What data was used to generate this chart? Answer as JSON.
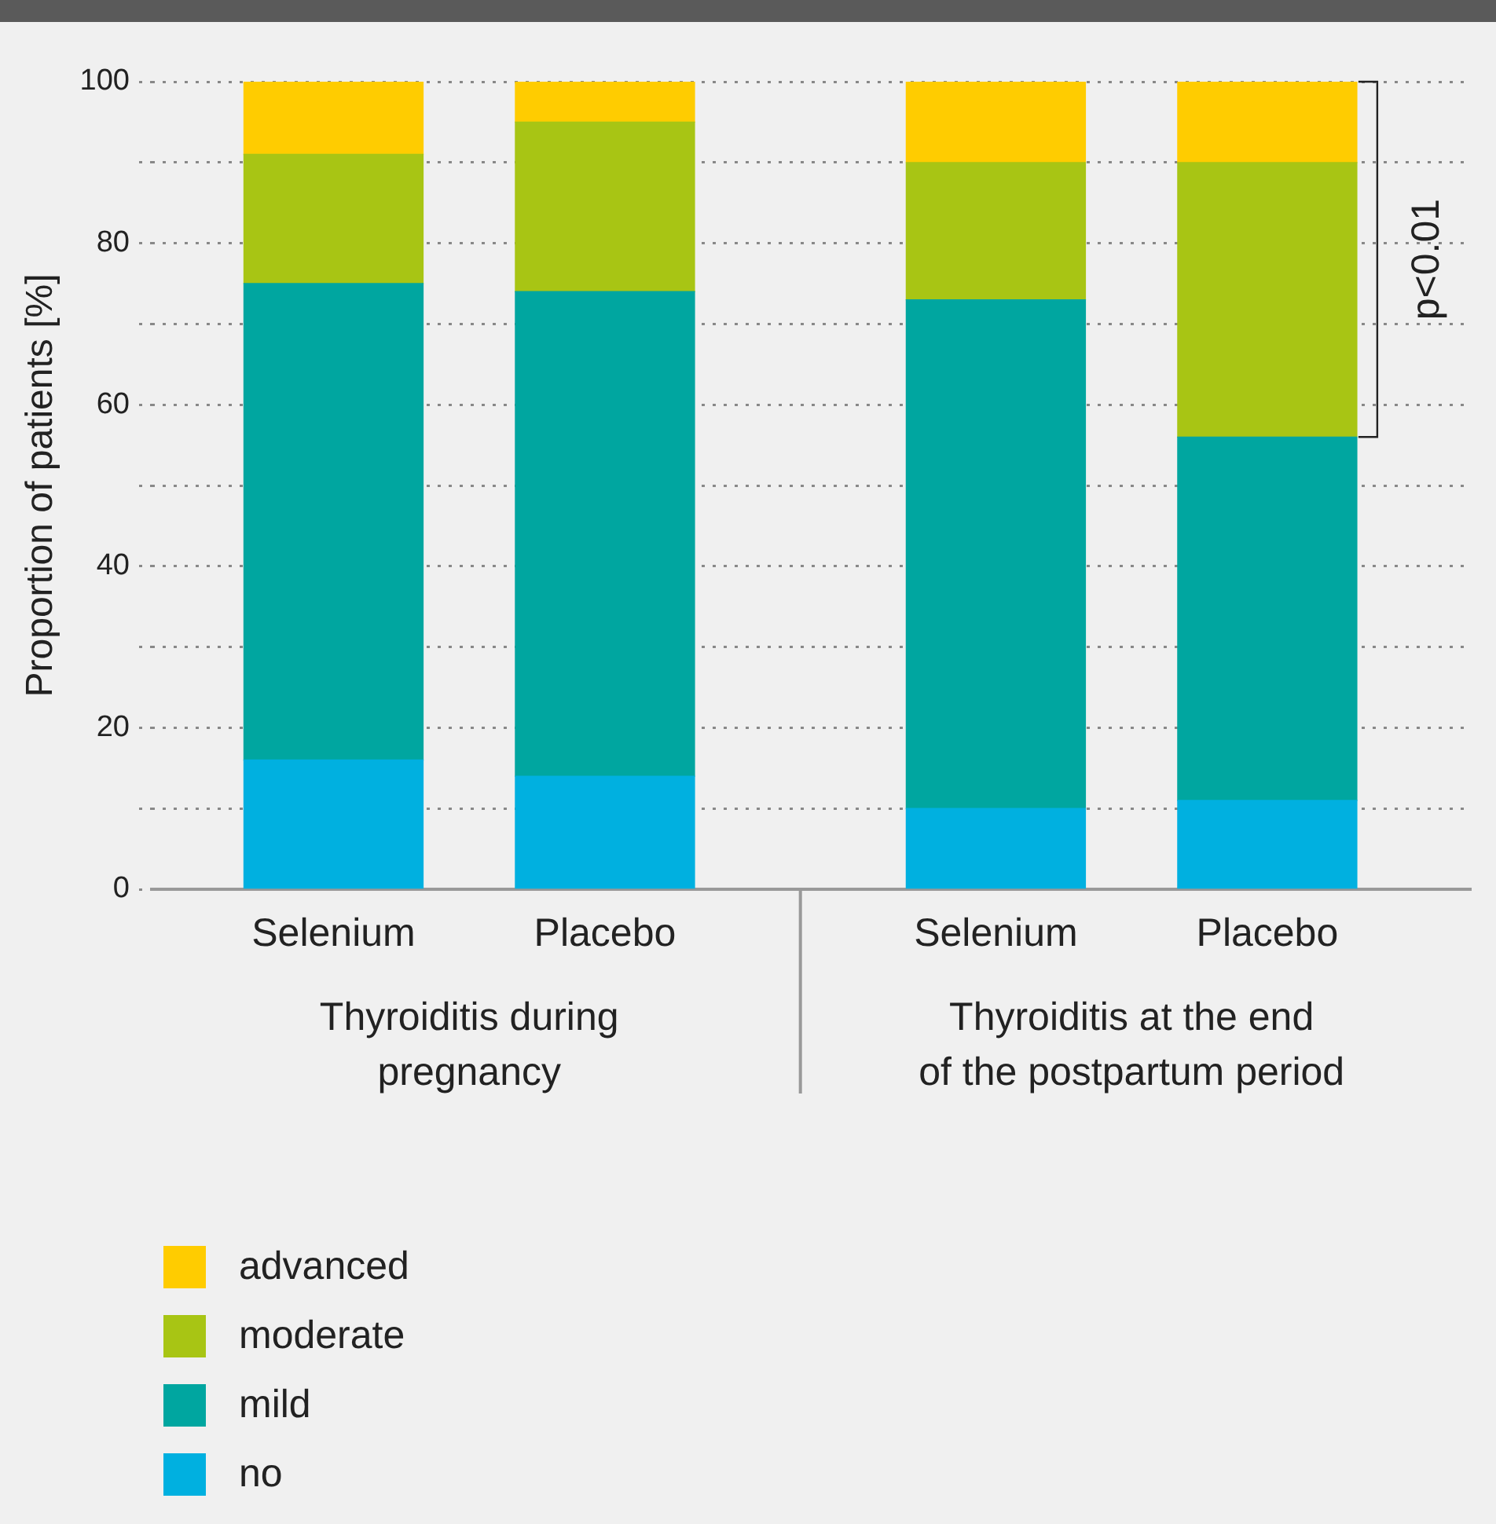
{
  "chart_data": {
    "type": "bar",
    "stacked": true,
    "ylabel": "Proportion of patients [%]",
    "categories": [
      "Selenium",
      "Placebo",
      "Selenium",
      "Placebo"
    ],
    "series": [
      {
        "name": "no",
        "color": "#00b0e0",
        "values": [
          16,
          14,
          10,
          11
        ]
      },
      {
        "name": "mild",
        "color": "#00a6a0",
        "values": [
          59,
          60,
          63,
          45
        ]
      },
      {
        "name": "moderate",
        "color": "#a8c514",
        "values": [
          16,
          21,
          17,
          34
        ]
      },
      {
        "name": "advanced",
        "color": "#ffcc00",
        "values": [
          9,
          5,
          10,
          10
        ]
      }
    ],
    "ylim": [
      0,
      100
    ],
    "yticks": [
      0,
      {
        "value": 10,
        "label": null
      },
      20,
      {
        "value": 30,
        "label": null
      },
      40,
      {
        "value": 50,
        "label": null
      },
      60,
      {
        "value": 70,
        "label": null
      },
      80,
      {
        "value": 90,
        "label": null
      },
      100
    ],
    "grid": "y",
    "legend": "bottom left",
    "annotations": [
      "Thyroiditis during\npregnancy",
      "Thyroiditis at the end\nof the postpartum period",
      "p<0.01"
    ]
  }
}
